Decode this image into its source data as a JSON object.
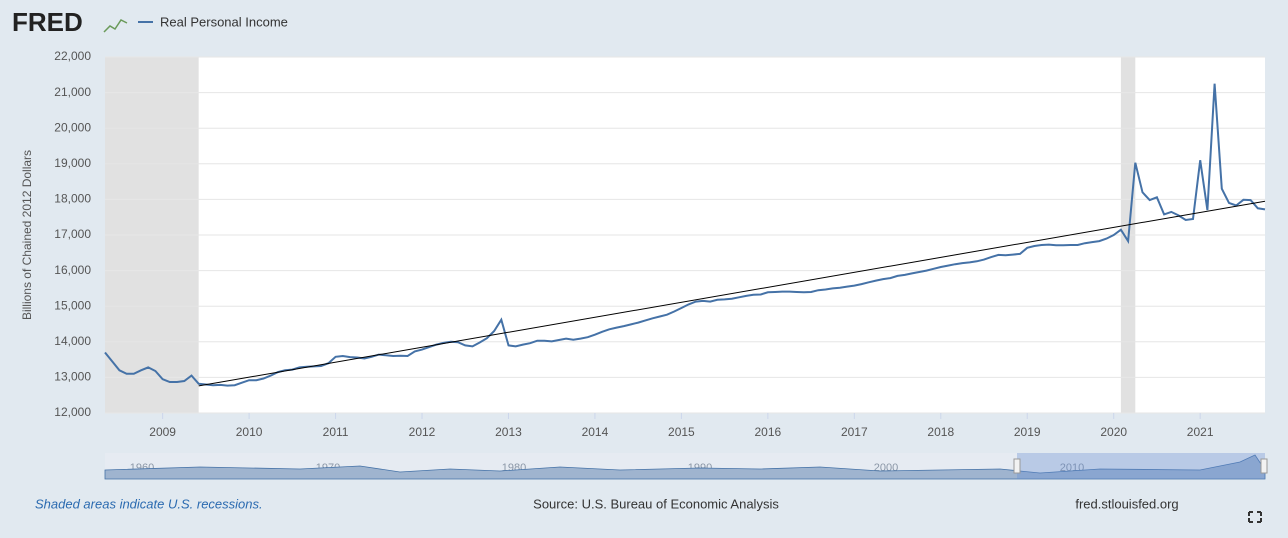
{
  "chart_data": {
    "type": "line",
    "logo": "FRED",
    "y_label": "Billions of Chained 2012 Dollars",
    "x": [
      "2008-05",
      "2008-06",
      "2008-07",
      "2008-08",
      "2008-09",
      "2008-10",
      "2008-11",
      "2008-12",
      "2009-01",
      "2009-02",
      "2009-03",
      "2009-04",
      "2009-05",
      "2009-06",
      "2009-07",
      "2009-08",
      "2009-09",
      "2009-10",
      "2009-11",
      "2009-12",
      "2010-01",
      "2010-02",
      "2010-03",
      "2010-04",
      "2010-05",
      "2010-06",
      "2010-07",
      "2010-08",
      "2010-09",
      "2010-10",
      "2010-11",
      "2010-12",
      "2011-01",
      "2011-02",
      "2011-03",
      "2011-04",
      "2011-05",
      "2011-06",
      "2011-07",
      "2011-08",
      "2011-09",
      "2011-10",
      "2011-11",
      "2011-12",
      "2012-01",
      "2012-02",
      "2012-03",
      "2012-04",
      "2012-05",
      "2012-06",
      "2012-07",
      "2012-08",
      "2012-09",
      "2012-10",
      "2012-11",
      "2012-12",
      "2013-01",
      "2013-02",
      "2013-03",
      "2013-04",
      "2013-05",
      "2013-06",
      "2013-07",
      "2013-08",
      "2013-09",
      "2013-10",
      "2013-11",
      "2013-12",
      "2014-01",
      "2014-02",
      "2014-03",
      "2014-04",
      "2014-05",
      "2014-06",
      "2014-07",
      "2014-08",
      "2014-09",
      "2014-10",
      "2014-11",
      "2014-12",
      "2015-01",
      "2015-02",
      "2015-03",
      "2015-04",
      "2015-05",
      "2015-06",
      "2015-07",
      "2015-08",
      "2015-09",
      "2015-10",
      "2015-11",
      "2015-12",
      "2016-01",
      "2016-02",
      "2016-03",
      "2016-04",
      "2016-05",
      "2016-06",
      "2016-07",
      "2016-08",
      "2016-09",
      "2016-10",
      "2016-11",
      "2016-12",
      "2017-01",
      "2017-02",
      "2017-03",
      "2017-04",
      "2017-05",
      "2017-06",
      "2017-07",
      "2017-08",
      "2017-09",
      "2017-10",
      "2017-11",
      "2017-12",
      "2018-01",
      "2018-02",
      "2018-03",
      "2018-04",
      "2018-05",
      "2018-06",
      "2018-07",
      "2018-08",
      "2018-09",
      "2018-10",
      "2018-11",
      "2018-12",
      "2019-01",
      "2019-02",
      "2019-03",
      "2019-04",
      "2019-05",
      "2019-06",
      "2019-07",
      "2019-08",
      "2019-09",
      "2019-10",
      "2019-11",
      "2019-12",
      "2020-01",
      "2020-02",
      "2020-03",
      "2020-04",
      "2020-05",
      "2020-06",
      "2020-07",
      "2020-08",
      "2020-09",
      "2020-10",
      "2020-11",
      "2020-12",
      "2021-01",
      "2021-02",
      "2021-03",
      "2021-04",
      "2021-05",
      "2021-06",
      "2021-07",
      "2021-08",
      "2021-09",
      "2021-10"
    ],
    "series": [
      {
        "name": "Real Personal Income",
        "color": "#4572a7",
        "values": [
          13700,
          13450,
          13200,
          13100,
          13100,
          13200,
          13280,
          13180,
          12950,
          12870,
          12870,
          12900,
          13050,
          12820,
          12800,
          12780,
          12790,
          12770,
          12780,
          12850,
          12920,
          12920,
          12970,
          13050,
          13150,
          13200,
          13220,
          13280,
          13300,
          13310,
          13320,
          13400,
          13580,
          13600,
          13570,
          13560,
          13530,
          13580,
          13640,
          13620,
          13600,
          13610,
          13600,
          13730,
          13780,
          13850,
          13920,
          13970,
          14000,
          13990,
          13900,
          13870,
          13980,
          14100,
          14300,
          14620,
          13900,
          13870,
          13920,
          13960,
          14030,
          14030,
          14010,
          14050,
          14090,
          14060,
          14090,
          14130,
          14200,
          14280,
          14350,
          14400,
          14440,
          14490,
          14540,
          14600,
          14660,
          14710,
          14760,
          14850,
          14950,
          15050,
          15130,
          15150,
          15130,
          15180,
          15190,
          15210,
          15250,
          15290,
          15320,
          15330,
          15390,
          15400,
          15410,
          15410,
          15400,
          15390,
          15400,
          15450,
          15470,
          15500,
          15520,
          15550,
          15580,
          15620,
          15670,
          15720,
          15760,
          15790,
          15850,
          15880,
          15920,
          15960,
          16000,
          16050,
          16100,
          16140,
          16180,
          16210,
          16230,
          16260,
          16310,
          16380,
          16440,
          16430,
          16450,
          16470,
          16640,
          16690,
          16720,
          16730,
          16710,
          16710,
          16720,
          16720,
          16770,
          16800,
          16830,
          16900,
          17000,
          17150,
          16830,
          19030,
          18200,
          17980,
          18060,
          17580,
          17650,
          17550,
          17420,
          17450,
          19100,
          17700,
          21250,
          18300,
          17900,
          17830,
          17990,
          17980,
          17750,
          17720
        ]
      }
    ],
    "trend": {
      "color": "#000000",
      "x": [
        "2009-06",
        "2021-10"
      ],
      "values": [
        12760,
        17950
      ]
    },
    "recessions": [
      {
        "start": "2008-05",
        "end": "2009-06"
      },
      {
        "start": "2020-02",
        "end": "2020-04"
      }
    ],
    "xlim": [
      "2008-05",
      "2021-10"
    ],
    "xticks": [
      2009,
      2010,
      2011,
      2012,
      2013,
      2014,
      2015,
      2016,
      2017,
      2018,
      2019,
      2020,
      2021
    ],
    "ylim": [
      12000,
      22000
    ],
    "yticks": [
      {
        "value": 12000,
        "label": "12,000"
      },
      {
        "value": 13000,
        "label": "13,000"
      },
      {
        "value": 14000,
        "label": "14,000"
      },
      {
        "value": 15000,
        "label": "15,000"
      },
      {
        "value": 16000,
        "label": "16,000"
      },
      {
        "value": 17000,
        "label": "17,000"
      },
      {
        "value": 18000,
        "label": "18,000"
      },
      {
        "value": 19000,
        "label": "19,000"
      },
      {
        "value": 20000,
        "label": "20,000"
      },
      {
        "value": 21000,
        "label": "21,000"
      },
      {
        "value": 22000,
        "label": "22,000"
      }
    ],
    "grid": true,
    "navigator_labels": [
      "1960",
      "1970",
      "1980",
      "1990",
      "2000",
      "2010"
    ],
    "recession_note": "Shaded areas indicate U.S. recessions.",
    "source": "Source: U.S. Bureau of Economic Analysis",
    "site": "fred.stlouisfed.org"
  }
}
